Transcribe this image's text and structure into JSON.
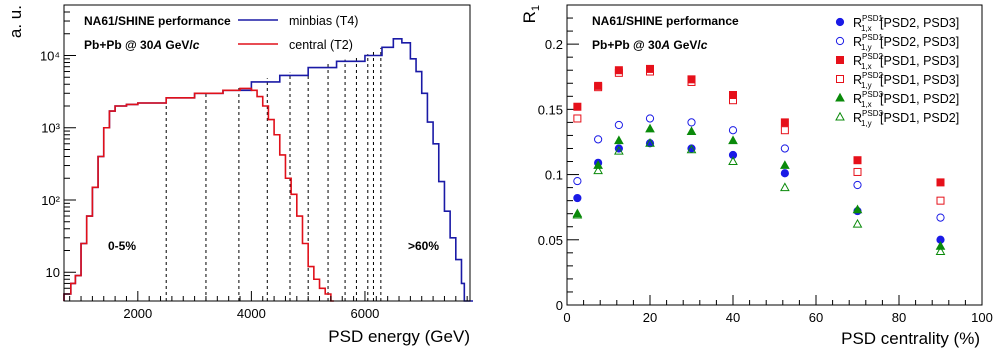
{
  "chart_data": [
    {
      "type": "line",
      "xlabel": "PSD energy (GeV)",
      "ylabel": "a. u.",
      "xlim": [
        700,
        7850
      ],
      "ylim": [
        4,
        50000
      ],
      "log_y": true,
      "xticks": [
        2000,
        4000,
        6000
      ],
      "yticks": [
        {
          "v": 10,
          "label": "10"
        },
        {
          "v": 100,
          "label": "10²"
        },
        {
          "v": 1000,
          "label": "10³"
        },
        {
          "v": 10000,
          "label": "10⁴"
        }
      ],
      "annotations": [
        "NA61/SHINE performance",
        "Pb+Pb @ 30A GeV/c",
        "0-5%",
        ">60%"
      ],
      "legend_position": "top-right",
      "series": [
        {
          "name": "minbias (T4)",
          "color": "#1a1aa6",
          "x": [
            700,
            820,
            900,
            1000,
            1100,
            1200,
            1300,
            1400,
            1500,
            1600,
            1800,
            2000,
            2500,
            3000,
            3500,
            4000,
            4500,
            5000,
            5500,
            6000,
            6300,
            6500,
            6650,
            6800,
            6900,
            7000,
            7100,
            7200,
            7300,
            7400,
            7500,
            7600,
            7700,
            7750,
            7850
          ],
          "values": [
            5,
            7,
            9,
            25,
            60,
            150,
            400,
            1000,
            1700,
            2000,
            2100,
            2200,
            2600,
            3000,
            3300,
            4300,
            5300,
            6800,
            8300,
            10000,
            13000,
            17000,
            15000,
            9000,
            6000,
            3000,
            1200,
            600,
            180,
            70,
            30,
            15,
            7,
            4,
            4
          ]
        },
        {
          "name": "central (T2)",
          "color": "#e0101a",
          "x": [
            700,
            820,
            900,
            1000,
            1100,
            1200,
            1300,
            1400,
            1500,
            1600,
            1800,
            2000,
            2500,
            3000,
            3500,
            3800,
            4000,
            4100,
            4200,
            4300,
            4400,
            4500,
            4600,
            4700,
            4800,
            4900,
            5000,
            5100,
            5200,
            5300,
            5400
          ],
          "values": [
            5,
            7,
            9,
            25,
            60,
            150,
            400,
            1000,
            1700,
            2000,
            2100,
            2200,
            2600,
            3000,
            3300,
            3500,
            3300,
            2700,
            2000,
            1300,
            800,
            420,
            200,
            120,
            60,
            25,
            12,
            8,
            6,
            5,
            4
          ]
        }
      ],
      "vertical_dashed_lines_x": [
        2500,
        3200,
        3780,
        4280,
        4680,
        5000,
        5350,
        5650,
        5850,
        6050,
        6150,
        6280
      ],
      "grid": false
    },
    {
      "type": "scatter",
      "xlabel": "PSD centrality (%)",
      "ylabel": "R₁",
      "xlim": [
        0,
        100
      ],
      "ylim": [
        0,
        0.23
      ],
      "xticks": [
        0,
        20,
        40,
        60,
        80,
        100
      ],
      "yticks": [
        0,
        0.05,
        0.1,
        0.15,
        0.2
      ],
      "annotations": [
        "NA61/SHINE performance",
        "Pb+Pb @ 30A GeV/c"
      ],
      "legend_position": "top-right",
      "x": [
        2.5,
        7.5,
        12.5,
        20,
        30,
        40,
        52.5,
        70,
        90
      ],
      "series": [
        {
          "name": "R1,x PSD1 [PSD2, PSD3]",
          "color": "#1a1ae6",
          "marker": "filled-circle",
          "values": [
            0.082,
            0.109,
            0.12,
            0.124,
            0.12,
            0.115,
            0.101,
            0.072,
            0.05
          ]
        },
        {
          "name": "R1,y PSD1 [PSD2, PSD3]",
          "color": "#1a1ae6",
          "marker": "open-circle",
          "values": [
            0.095,
            0.127,
            0.138,
            0.143,
            0.14,
            0.134,
            0.12,
            0.092,
            0.067
          ]
        },
        {
          "name": "R1,x PSD2 [PSD1, PSD3]",
          "color": "#e6101a",
          "marker": "filled-square",
          "values": [
            0.152,
            0.168,
            0.18,
            0.181,
            0.173,
            0.161,
            0.14,
            0.111,
            0.094
          ]
        },
        {
          "name": "R1,y PSD2 [PSD1, PSD3]",
          "color": "#e6101a",
          "marker": "open-square",
          "values": [
            0.143,
            0.167,
            0.178,
            0.179,
            0.171,
            0.157,
            0.134,
            0.102,
            0.08
          ]
        },
        {
          "name": "R1,x PSD3 [PSD1, PSD2]",
          "color": "#0a8a0a",
          "marker": "filled-triangle",
          "values": [
            0.07,
            0.107,
            0.126,
            0.135,
            0.133,
            0.126,
            0.107,
            0.073,
            0.045
          ]
        },
        {
          "name": "R1,y PSD3 [PSD1, PSD2]",
          "color": "#0a8a0a",
          "marker": "open-triangle",
          "values": [
            0.069,
            0.103,
            0.118,
            0.124,
            0.119,
            0.11,
            0.09,
            0.062,
            0.041
          ]
        }
      ],
      "grid": false
    }
  ],
  "left": {
    "title1": "NA61/SHINE performance",
    "title2_a": "Pb+Pb @ 30",
    "title2_b": "A",
    "title2_c": " GeV/",
    "title2_d": "c",
    "legend": [
      "minbias (T4)",
      "central (T2)"
    ],
    "label_central": "0-5%",
    "label_peripheral": ">60%",
    "xlabel": "PSD energy (GeV)",
    "ylabel": "a. u."
  },
  "right": {
    "title1": "NA61/SHINE performance",
    "title2_a": "Pb+Pb @ 30",
    "title2_b": "A",
    "title2_c": " GeV/",
    "title2_d": "c",
    "xlabel": "PSD centrality (%)",
    "ylabel_main": "R",
    "ylabel_sub": "1",
    "legend": [
      {
        "R": "R",
        "sup": "PSD1",
        "sub": "1,x",
        "rest": "[PSD2, PSD3]"
      },
      {
        "R": "R",
        "sup": "PSD1",
        "sub": "1,y",
        "rest": "[PSD2, PSD3]"
      },
      {
        "R": "R",
        "sup": "PSD2",
        "sub": "1,x",
        "rest": "[PSD1, PSD3]"
      },
      {
        "R": "R",
        "sup": "PSD2",
        "sub": "1,y",
        "rest": "[PSD1, PSD3]"
      },
      {
        "R": "R",
        "sup": "PSD3",
        "sub": "1,x",
        "rest": "[PSD1, PSD2]"
      },
      {
        "R": "R",
        "sup": "PSD3",
        "sub": "1,y",
        "rest": "[PSD1, PSD2]"
      }
    ]
  }
}
